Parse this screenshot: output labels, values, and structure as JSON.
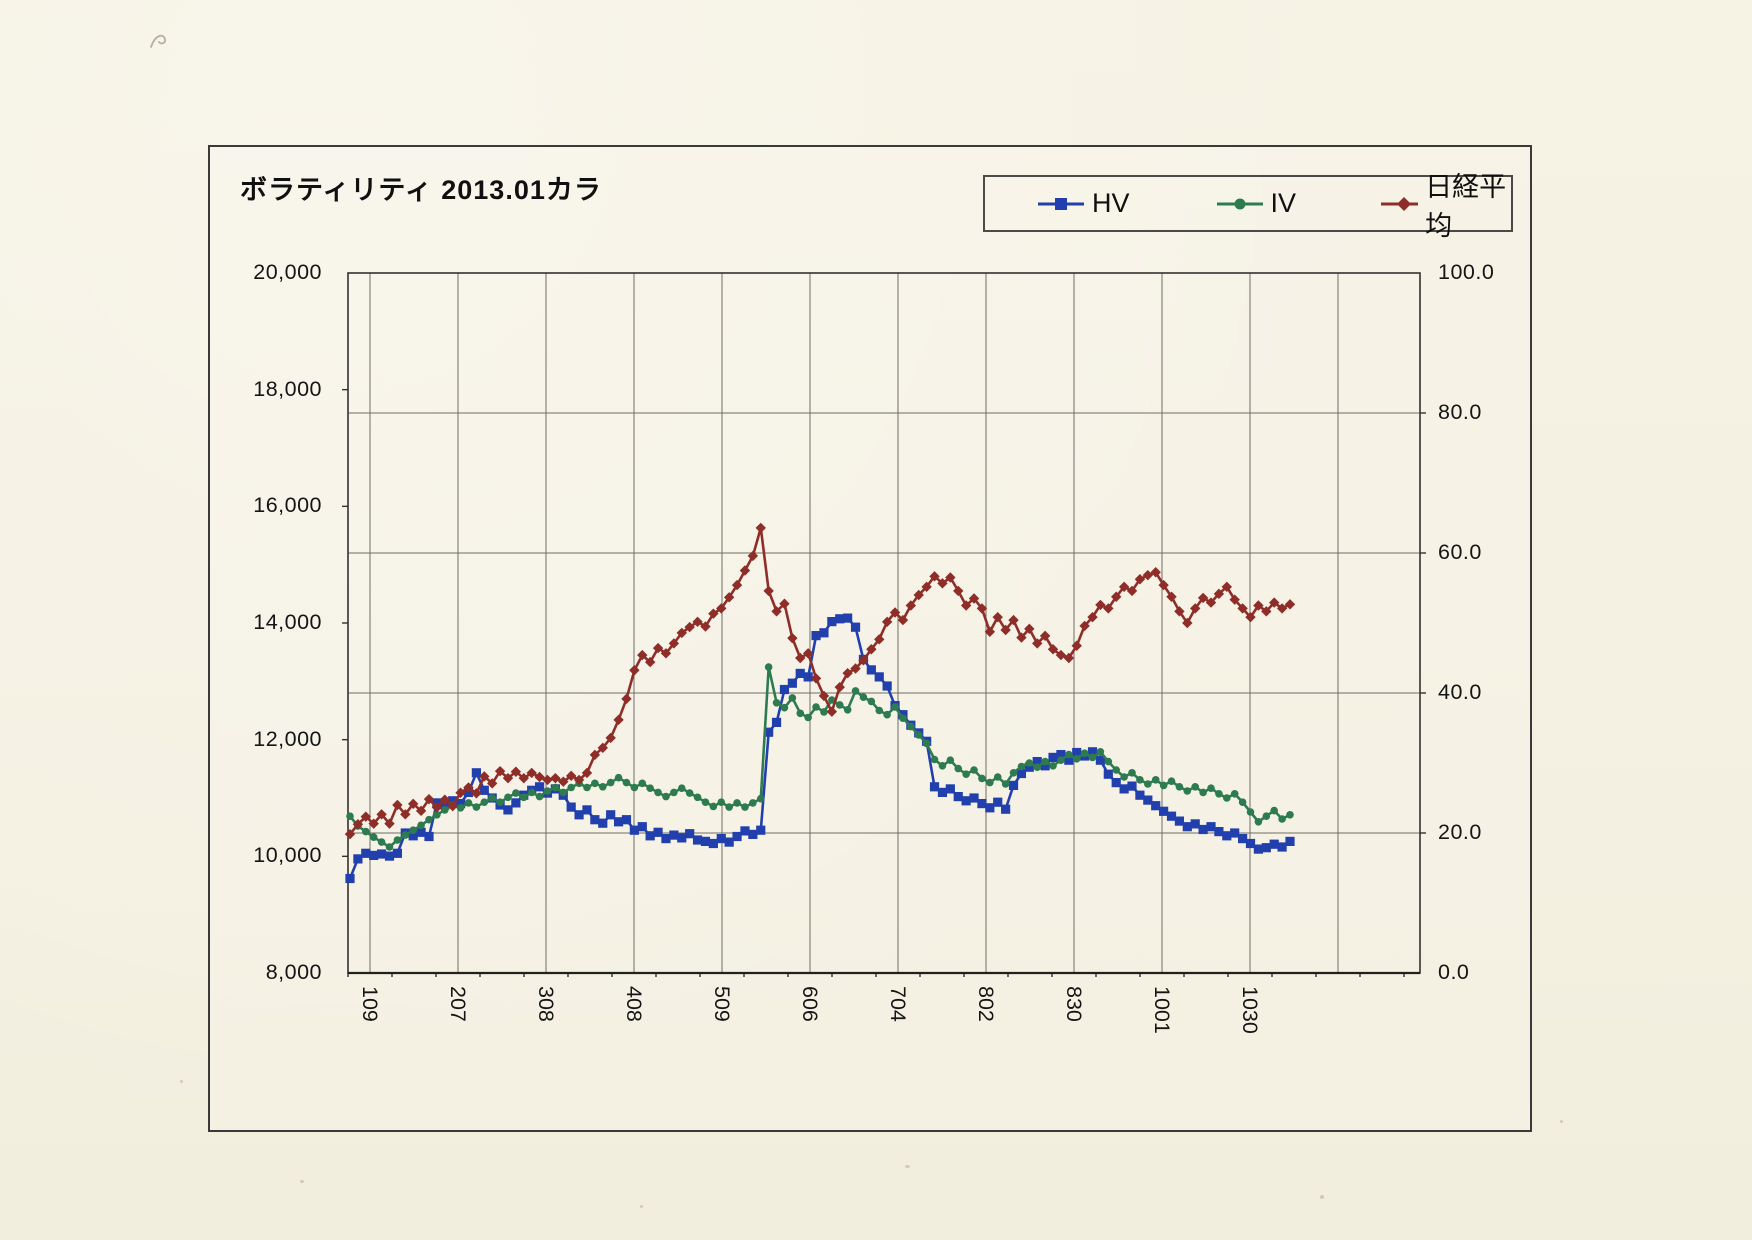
{
  "chart": {
    "title": "ボラティリティ 2013.01カラ"
  },
  "chart_data": {
    "type": "line",
    "title": "ボラティリティ 2013.01カラ",
    "grid": true,
    "legend_position": "top-right",
    "x_tick_labels": [
      "109",
      "207",
      "308",
      "408",
      "509",
      "606",
      "704",
      "802",
      "830",
      "1001",
      "1030"
    ],
    "left_axis": {
      "min": 8000,
      "max": 20000,
      "ticks": [
        "20,000",
        "18,000",
        "16,000",
        "14,000",
        "12,000",
        "10,000",
        "8,000"
      ]
    },
    "right_axis": {
      "min": 0,
      "max": 100,
      "ticks": [
        "100.0",
        "80.0",
        "60.0",
        "40.0",
        "20.0",
        "0.0"
      ]
    },
    "series": [
      {
        "name": "HV",
        "axis": "right",
        "color": "#2140ae",
        "marker": "square",
        "values": [
          13.5,
          16.3,
          17.1,
          16.8,
          17.0,
          16.7,
          17.1,
          20.0,
          19.6,
          20.1,
          19.5,
          24.3,
          24.0,
          24.6,
          24.2,
          25.8,
          28.6,
          26.1,
          25.0,
          24.0,
          23.3,
          24.3,
          25.4,
          26.1,
          26.6,
          25.7,
          26.3,
          25.4,
          23.7,
          22.6,
          23.3,
          21.9,
          21.4,
          22.6,
          21.6,
          21.9,
          20.4,
          20.9,
          19.6,
          20.1,
          19.2,
          19.7,
          19.3,
          19.9,
          19.0,
          18.8,
          18.5,
          19.2,
          18.7,
          19.5,
          20.3,
          19.8,
          20.4,
          34.4,
          35.8,
          40.5,
          41.4,
          42.8,
          42.3,
          48.2,
          48.6,
          50.2,
          50.6,
          50.7,
          49.4,
          44.8,
          43.3,
          42.3,
          41.0,
          38.2,
          36.9,
          35.4,
          34.3,
          33.1,
          26.6,
          25.8,
          26.3,
          25.2,
          24.6,
          25.0,
          24.2,
          23.6,
          24.4,
          23.4,
          26.8,
          28.5,
          29.4,
          30.2,
          29.6,
          30.8,
          31.2,
          30.4,
          31.5,
          31.0,
          31.6,
          30.4,
          28.4,
          27.2,
          26.3,
          26.7,
          25.4,
          24.7,
          23.9,
          23.1,
          22.4,
          21.7,
          20.9,
          21.3,
          20.5,
          20.9,
          20.2,
          19.6,
          20.0,
          19.2,
          18.5,
          17.7,
          17.9,
          18.4,
          18.0,
          18.8
        ]
      },
      {
        "name": "IV",
        "axis": "right",
        "color": "#2e7b50",
        "marker": "circle",
        "values": [
          22.4,
          21.0,
          20.2,
          19.4,
          18.7,
          18.0,
          19.0,
          19.7,
          20.4,
          21.1,
          21.9,
          22.6,
          23.3,
          24.0,
          23.6,
          24.3,
          23.7,
          24.4,
          25.0,
          24.4,
          25.1,
          25.7,
          25.1,
          25.8,
          25.2,
          26.0,
          26.5,
          25.8,
          26.5,
          27.1,
          26.5,
          27.1,
          26.6,
          27.2,
          27.9,
          27.2,
          26.5,
          27.1,
          26.4,
          25.8,
          25.2,
          25.8,
          26.4,
          25.7,
          25.1,
          24.4,
          23.8,
          24.4,
          23.7,
          24.3,
          23.7,
          24.3,
          24.9,
          43.7,
          38.6,
          37.9,
          39.3,
          37.1,
          36.5,
          38.0,
          37.3,
          39.0,
          38.3,
          37.6,
          40.3,
          39.4,
          38.8,
          37.5,
          36.9,
          38.0,
          36.4,
          35.2,
          34.0,
          32.8,
          30.5,
          29.6,
          30.4,
          29.2,
          28.4,
          29.0,
          27.8,
          27.2,
          28.0,
          27.0,
          28.6,
          29.5,
          30.0,
          29.4,
          30.2,
          29.6,
          30.4,
          31.2,
          30.6,
          31.4,
          30.8,
          31.6,
          30.2,
          29.0,
          28.0,
          28.6,
          27.6,
          27.0,
          27.6,
          26.8,
          27.4,
          26.6,
          26.0,
          26.6,
          25.8,
          26.4,
          25.6,
          25.0,
          25.6,
          24.4,
          23.0,
          21.6,
          22.4,
          23.2,
          22.0,
          22.6
        ]
      },
      {
        "name": "日経平均",
        "axis": "left",
        "color": "#8f2d28",
        "marker": "diamond",
        "values": [
          10380,
          10550,
          10680,
          10560,
          10720,
          10560,
          10880,
          10720,
          10900,
          10780,
          10980,
          10840,
          10970,
          10860,
          11090,
          11180,
          11080,
          11370,
          11250,
          11460,
          11340,
          11450,
          11340,
          11430,
          11360,
          11310,
          11340,
          11280,
          11380,
          11310,
          11430,
          11740,
          11860,
          12030,
          12340,
          12700,
          13190,
          13450,
          13330,
          13570,
          13480,
          13650,
          13830,
          13930,
          14020,
          13940,
          14160,
          14250,
          14440,
          14650,
          14900,
          15150,
          15630,
          14550,
          14200,
          14330,
          13740,
          13400,
          13480,
          13050,
          12750,
          12480,
          12900,
          13140,
          13220,
          13360,
          13550,
          13720,
          14020,
          14180,
          14050,
          14300,
          14480,
          14620,
          14800,
          14680,
          14780,
          14550,
          14300,
          14420,
          14250,
          13850,
          14100,
          13880,
          14050,
          13750,
          13900,
          13650,
          13780,
          13550,
          13450,
          13400,
          13610,
          13950,
          14100,
          14310,
          14250,
          14450,
          14620,
          14550,
          14750,
          14820,
          14870,
          14650,
          14450,
          14200,
          14000,
          14250,
          14430,
          14350,
          14500,
          14620,
          14400,
          14250,
          14100,
          14300,
          14200,
          14350,
          14250,
          14320
        ]
      }
    ]
  }
}
